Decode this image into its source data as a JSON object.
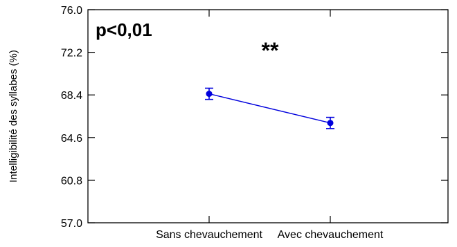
{
  "chart_data": {
    "type": "line",
    "title": "",
    "xlabel": "",
    "ylabel": "Intelligibilité des syllabes (%)",
    "categories": [
      "Sans chevauchement",
      "Avec chevauchement"
    ],
    "series": [
      {
        "values": [
          68.5,
          65.9
        ],
        "error": [
          0.5,
          0.5
        ],
        "color": "#0000dd"
      }
    ],
    "ylim": [
      57.0,
      76.0
    ],
    "yticks": [
      "57.0",
      "60.8",
      "64.6",
      "68.4",
      "72.2",
      "76.0"
    ],
    "grid": false,
    "annotations": {
      "pvalue": "p<0,01",
      "significance": "**"
    }
  }
}
